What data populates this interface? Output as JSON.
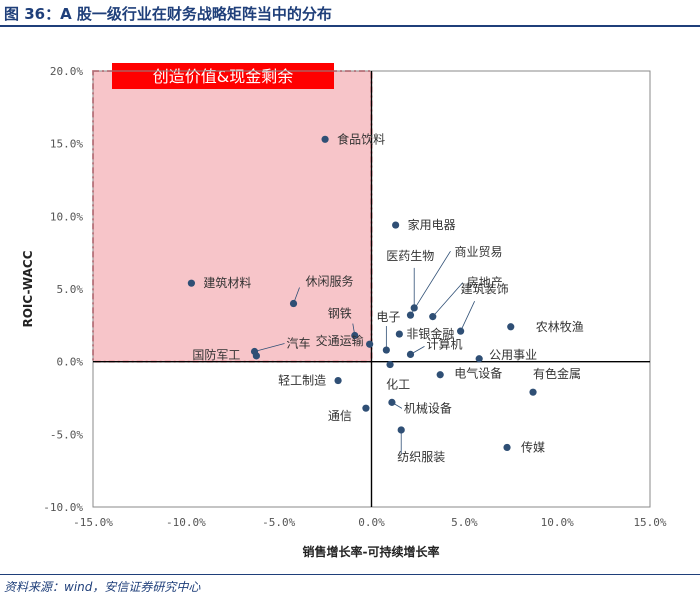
{
  "header": {
    "title": "图 36：A 股一级行业在财务战略矩阵当中的分布"
  },
  "footer": {
    "source": "资料来源：wind，安信证券研究中心"
  },
  "colors": {
    "title": "#1f3f7a",
    "point": "#2f4f75",
    "highlight_fill": "#f7c5c9",
    "highlight_border": "#e2001a",
    "highlight_label_bg": "#ff0000"
  },
  "chart_data": {
    "type": "scatter",
    "xlabel": "销售增长率-可持续增长率",
    "ylabel": "ROIC-WACC",
    "xlim": [
      -0.15,
      0.15
    ],
    "ylim": [
      -0.1,
      0.2
    ],
    "x_ticks": [
      "-15.0%",
      "-10.0%",
      "-5.0%",
      "0.0%",
      "5.0%",
      "10.0%",
      "15.0%"
    ],
    "y_ticks": [
      "20.0%",
      "15.0%",
      "10.0%",
      "5.0%",
      "0.0%",
      "-5.0%",
      "-10.0%"
    ],
    "grid": false,
    "highlight_region": {
      "label": "创造价值&现金剩余",
      "x_range": [
        -0.15,
        0.0
      ],
      "y_range": [
        0.0,
        0.2
      ]
    },
    "points": [
      {
        "name": "食品饮料",
        "x": -0.025,
        "y": 0.153
      },
      {
        "name": "建筑材料",
        "x": -0.097,
        "y": 0.054
      },
      {
        "name": "休闲服务",
        "x": -0.042,
        "y": 0.04
      },
      {
        "name": "钢铁",
        "x": -0.009,
        "y": 0.018
      },
      {
        "name": "汽车",
        "x": -0.063,
        "y": 0.007
      },
      {
        "name": "国防军工",
        "x": -0.062,
        "y": 0.004
      },
      {
        "name": "交通运输",
        "x": -0.001,
        "y": 0.012
      },
      {
        "name": "电子",
        "x": 0.008,
        "y": 0.008
      },
      {
        "name": "家用电器",
        "x": 0.013,
        "y": 0.094
      },
      {
        "name": "医药生物",
        "x": 0.023,
        "y": 0.037
      },
      {
        "name": "商业贸易",
        "x": 0.021,
        "y": 0.032
      },
      {
        "name": "房地产",
        "x": 0.033,
        "y": 0.031
      },
      {
        "name": "建筑装饰",
        "x": 0.048,
        "y": 0.021
      },
      {
        "name": "非银金融",
        "x": 0.015,
        "y": 0.019
      },
      {
        "name": "农林牧渔",
        "x": 0.075,
        "y": 0.024
      },
      {
        "name": "计算机",
        "x": 0.021,
        "y": 0.005
      },
      {
        "name": "公用事业",
        "x": 0.058,
        "y": 0.002
      },
      {
        "name": "化工",
        "x": 0.01,
        "y": -0.002
      },
      {
        "name": "电气设备",
        "x": 0.037,
        "y": -0.009
      },
      {
        "name": "轻工制造",
        "x": -0.018,
        "y": -0.013
      },
      {
        "name": "有色金属",
        "x": 0.087,
        "y": -0.021
      },
      {
        "name": "机械设备",
        "x": 0.011,
        "y": -0.028
      },
      {
        "name": "通信",
        "x": -0.003,
        "y": -0.032
      },
      {
        "name": "纺织服装",
        "x": 0.016,
        "y": -0.047
      },
      {
        "name": "传媒",
        "x": 0.073,
        "y": -0.059
      }
    ]
  }
}
